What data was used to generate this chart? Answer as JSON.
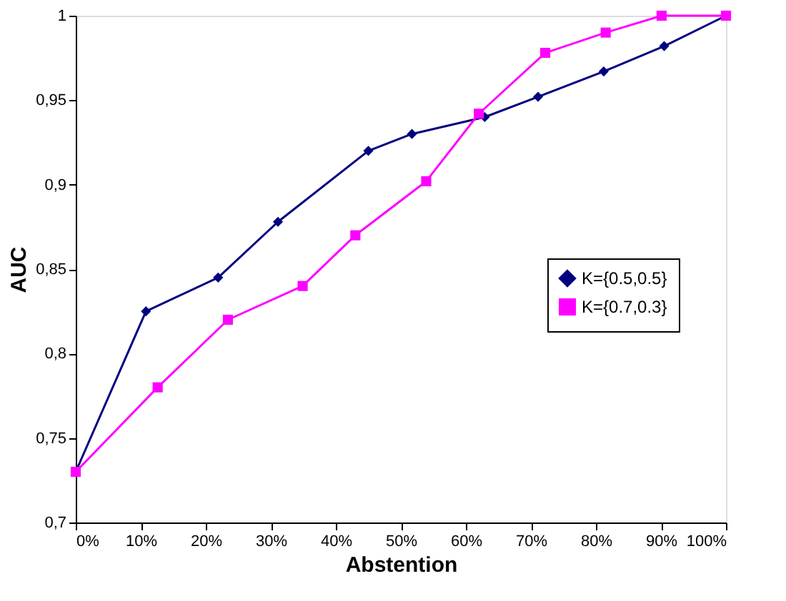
{
  "chart_data": {
    "type": "line",
    "xlabel": "Abstention",
    "ylabel": "AUC",
    "xlim": [
      0,
      100
    ],
    "ylim": [
      0.7,
      1
    ],
    "xticks": [
      {
        "value": 0,
        "label": "0%"
      },
      {
        "value": 10,
        "label": "10%"
      },
      {
        "value": 20,
        "label": "20%"
      },
      {
        "value": 30,
        "label": "30%"
      },
      {
        "value": 40,
        "label": "40%"
      },
      {
        "value": 50,
        "label": "50%"
      },
      {
        "value": 60,
        "label": "60%"
      },
      {
        "value": 70,
        "label": "70%"
      },
      {
        "value": 80,
        "label": "80%"
      },
      {
        "value": 90,
        "label": "90%"
      },
      {
        "value": 100,
        "label": "100%"
      }
    ],
    "yticks": [
      {
        "value": 0.7,
        "label": "0,7"
      },
      {
        "value": 0.75,
        "label": "0,75"
      },
      {
        "value": 0.8,
        "label": "0,8"
      },
      {
        "value": 0.85,
        "label": "0,85"
      },
      {
        "value": 0.9,
        "label": "0,9"
      },
      {
        "value": 0.95,
        "label": "0,95"
      },
      {
        "value": 1,
        "label": "1"
      }
    ],
    "grid": false,
    "legend": "right",
    "line_style": "solid",
    "series": [
      {
        "name": "K={0.5,0.5}",
        "color": "#000080",
        "marker": "diamond",
        "x": [
          0,
          10.8,
          21.9,
          31.1,
          45,
          51.7,
          62.9,
          71.1,
          81.2,
          90.5,
          100
        ],
        "values": [
          0.73,
          0.825,
          0.845,
          0.878,
          0.92,
          0.93,
          0.94,
          0.952,
          0.967,
          0.982,
          1
        ]
      },
      {
        "name": "K={0.7,0.3}",
        "color": "#ff00ff",
        "marker": "square",
        "x": [
          0,
          12.6,
          23.4,
          34.9,
          43,
          53.9,
          62,
          72.2,
          81.5,
          90.1,
          100
        ],
        "values": [
          0.73,
          0.78,
          0.82,
          0.84,
          0.87,
          0.902,
          0.942,
          0.978,
          0.99,
          1,
          1
        ]
      }
    ]
  }
}
